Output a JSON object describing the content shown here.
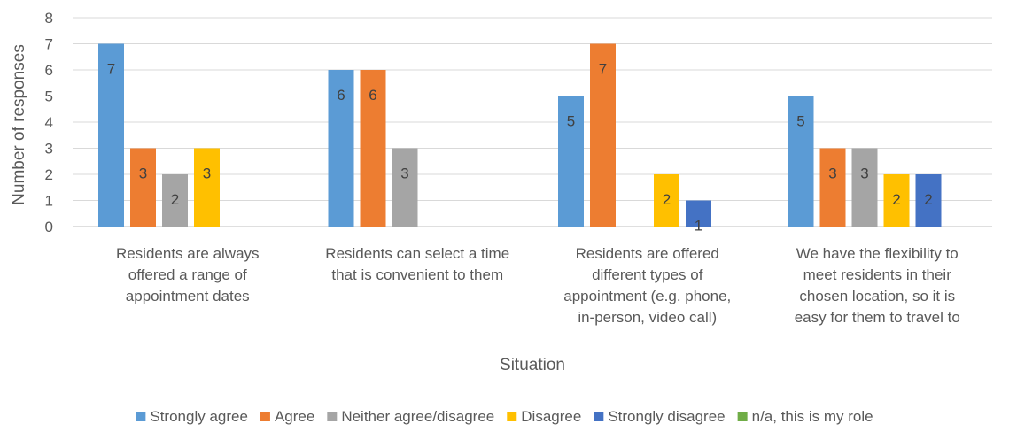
{
  "chart_data": {
    "type": "bar",
    "title": "",
    "xlabel": "Situation",
    "ylabel": "Number of responses",
    "ylim": [
      0,
      8
    ],
    "yticks": [
      0,
      1,
      2,
      3,
      4,
      5,
      6,
      7,
      8
    ],
    "grid": true,
    "legend_position": "bottom",
    "categories": [
      [
        "Residents are always",
        "offered a range of",
        "appointment dates"
      ],
      [
        "Residents can select a time",
        "that is convenient to them"
      ],
      [
        "Residents are offered",
        "different types of",
        "appointment (e.g. phone,",
        "in-person, video call)"
      ],
      [
        "We have the flexibility to",
        "meet residents in their",
        "chosen location, so it is",
        "easy for them to travel to"
      ]
    ],
    "series": [
      {
        "name": "Strongly agree",
        "color": "#5B9BD5",
        "values": [
          7,
          6,
          5,
          5
        ]
      },
      {
        "name": "Agree",
        "color": "#ED7D31",
        "values": [
          3,
          6,
          7,
          3
        ]
      },
      {
        "name": "Neither agree/disagree",
        "color": "#A5A5A5",
        "values": [
          2,
          3,
          0,
          3
        ]
      },
      {
        "name": "Disagree",
        "color": "#FFC000",
        "values": [
          3,
          0,
          2,
          2
        ]
      },
      {
        "name": "Strongly disagree",
        "color": "#4472C4",
        "values": [
          0,
          0,
          1,
          2
        ]
      },
      {
        "name": "n/a, this is my role",
        "color": "#70AD47",
        "values": [
          0,
          0,
          0,
          0
        ]
      }
    ]
  }
}
